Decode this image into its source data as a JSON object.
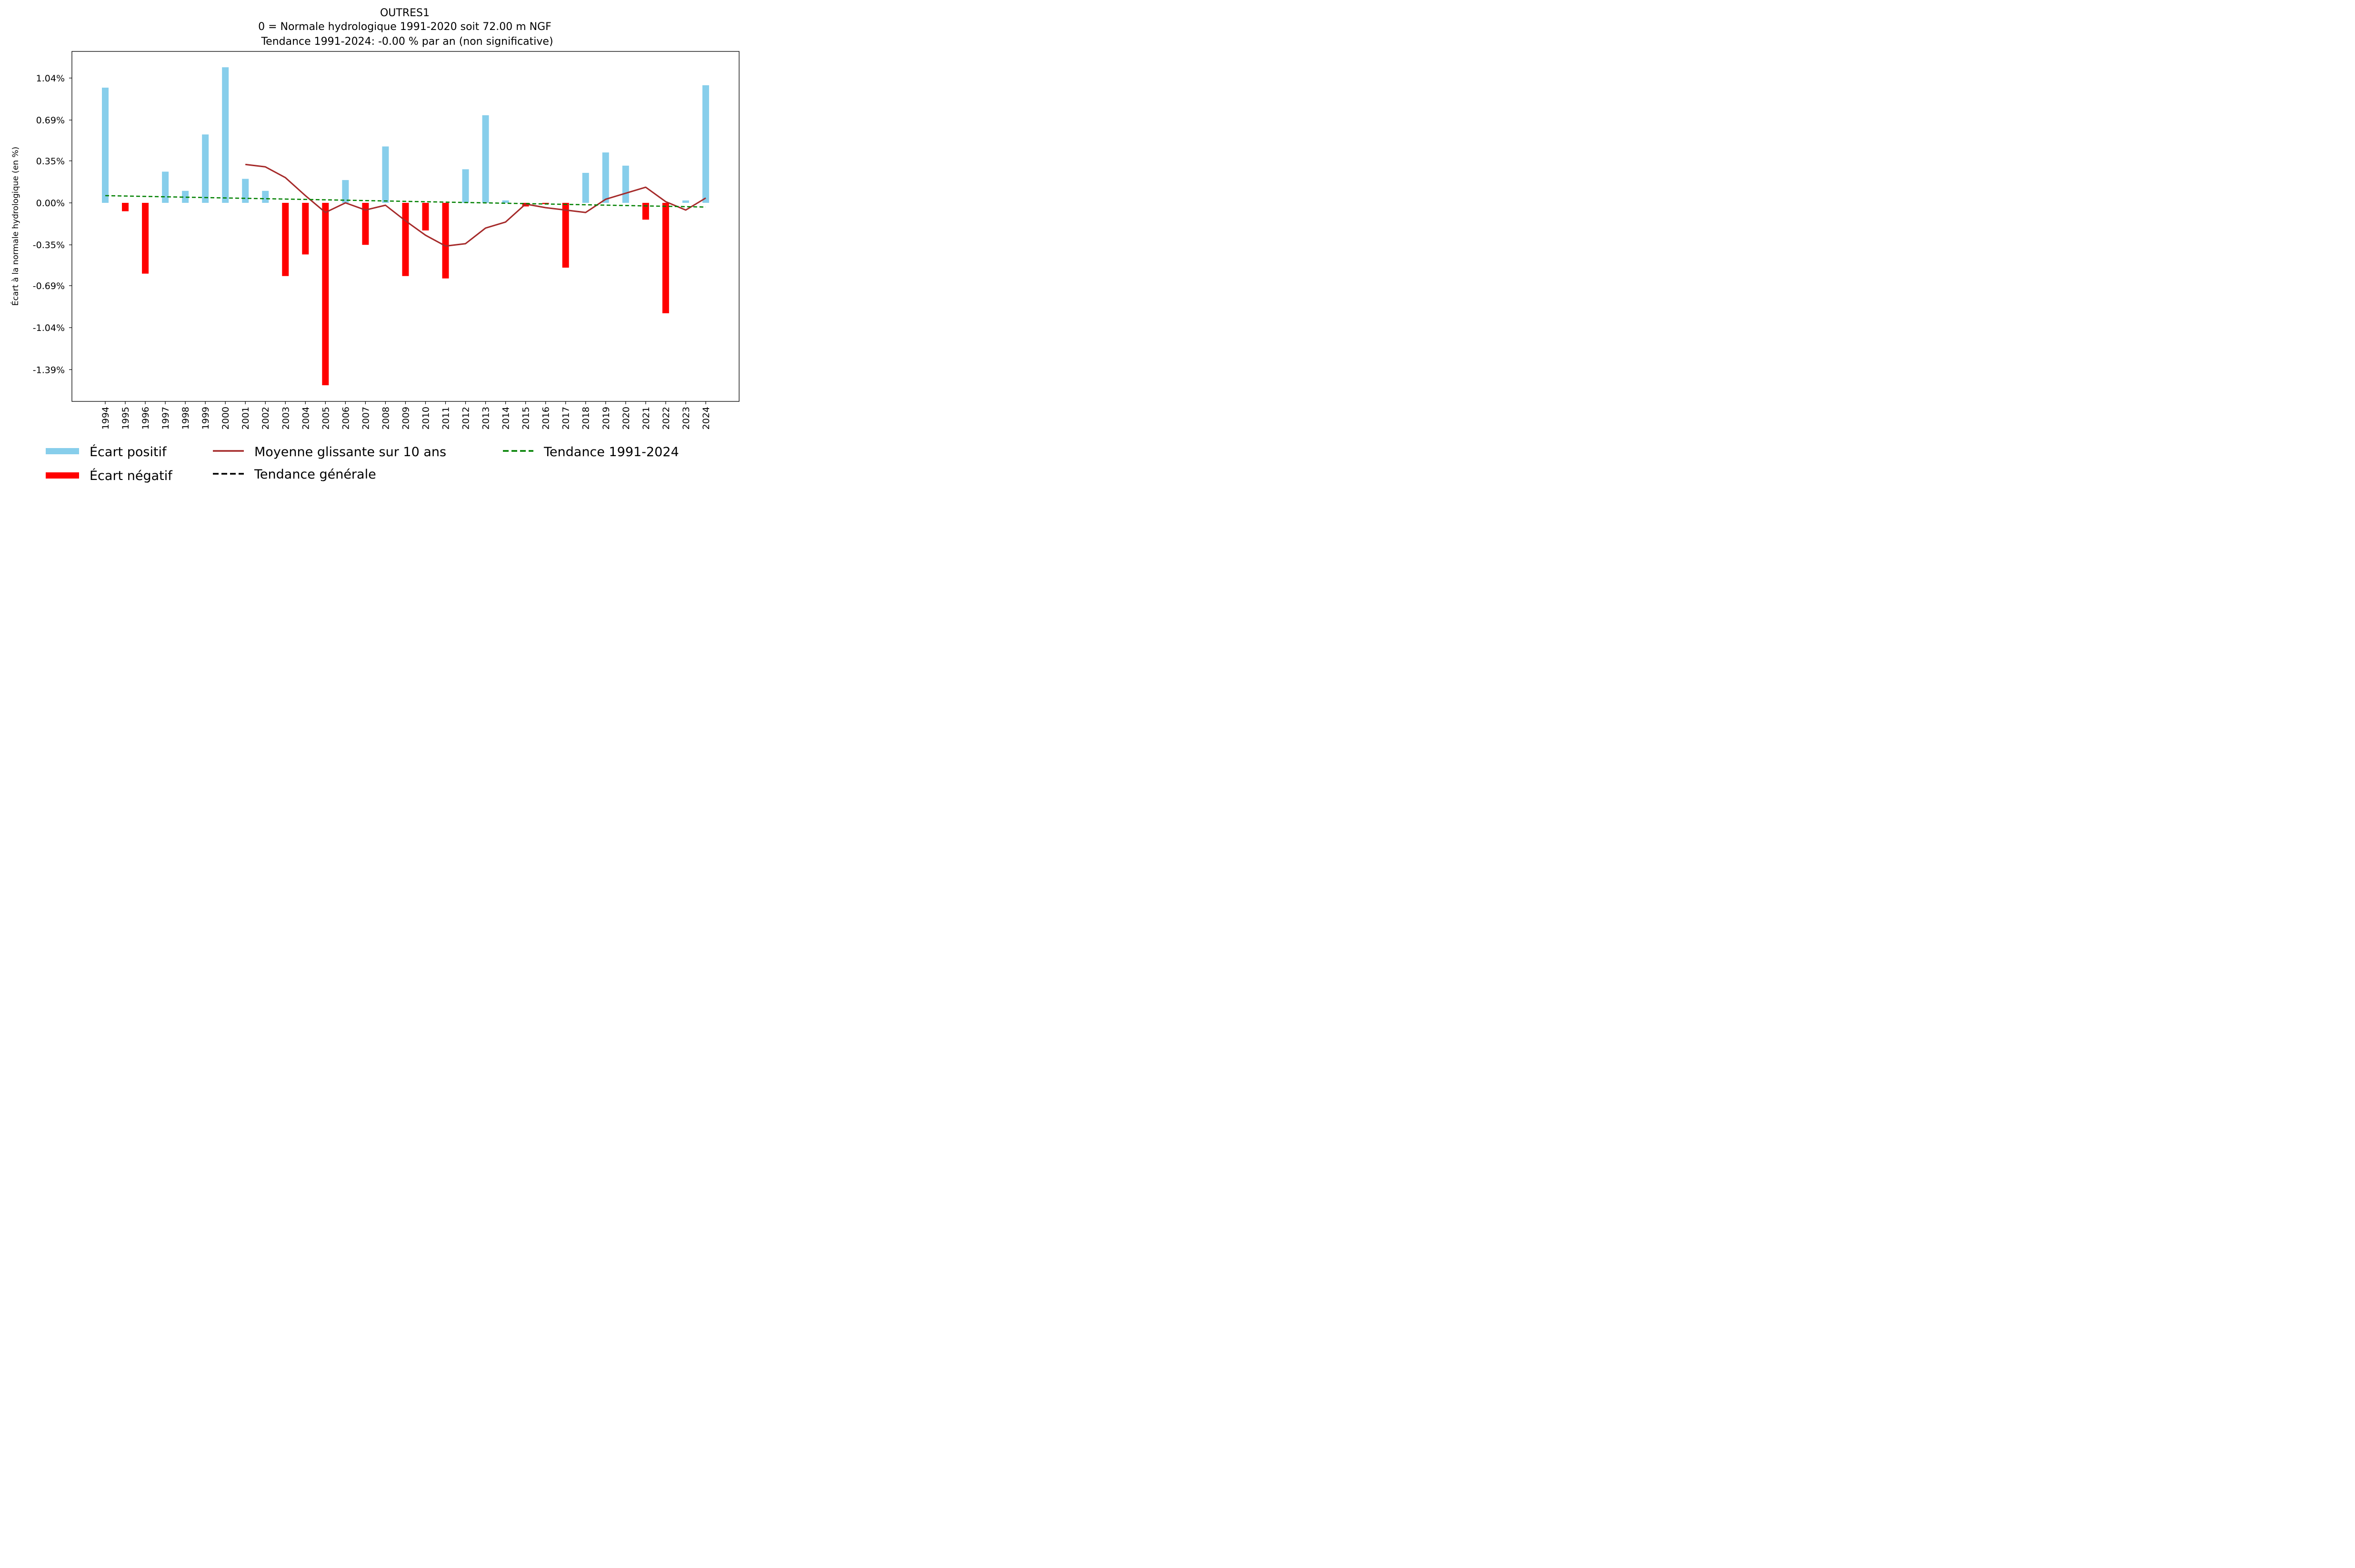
{
  "chart_data": {
    "type": "bar",
    "title": "OUTRES1",
    "subtitle_lines": [
      "0 = Normale hydrologique 1991-2020 soit 72.00 m NGF",
      "Tendance 1991-2024: -0.00 % par an (non significative)"
    ],
    "xlabel": "",
    "ylabel": "Écart à la normale hydrologique (en %)",
    "ylim": [
      -1.65,
      1.26
    ],
    "yticks": [
      1.04,
      0.69,
      0.35,
      0.0,
      -0.35,
      -0.69,
      -1.04,
      -1.39
    ],
    "ytick_labels": [
      "1.04%",
      "0.69%",
      "0.35%",
      "0.00%",
      "-0.35%",
      "-0.69%",
      "-1.04%",
      "-1.39%"
    ],
    "grid": false,
    "categories": [
      "1994",
      "1995",
      "1996",
      "1997",
      "1998",
      "1999",
      "2000",
      "2001",
      "2002",
      "2003",
      "2004",
      "2005",
      "2006",
      "2007",
      "2008",
      "2009",
      "2010",
      "2011",
      "2012",
      "2013",
      "2014",
      "2015",
      "2016",
      "2017",
      "2018",
      "2019",
      "2020",
      "2021",
      "2022",
      "2023",
      "2024"
    ],
    "series": [
      {
        "name": "Écart à la normale",
        "kind": "bar",
        "values": [
          0.96,
          -0.07,
          -0.59,
          0.26,
          0.1,
          0.57,
          1.13,
          0.2,
          0.1,
          -0.61,
          -0.43,
          -1.52,
          0.19,
          -0.35,
          0.47,
          -0.61,
          -0.23,
          -0.63,
          0.28,
          0.73,
          0.02,
          -0.03,
          -0.01,
          -0.54,
          0.25,
          0.42,
          0.31,
          -0.14,
          -0.92,
          0.02,
          0.98
        ],
        "positive_color": "#87ceeb",
        "negative_color": "#ff0000"
      },
      {
        "name": "Moyenne glissante sur 10 ans",
        "kind": "line",
        "x": [
          "2001",
          "2002",
          "2003",
          "2004",
          "2005",
          "2006",
          "2007",
          "2008",
          "2009",
          "2010",
          "2011",
          "2012",
          "2013",
          "2014",
          "2015",
          "2016",
          "2017",
          "2018",
          "2019",
          "2020",
          "2021",
          "2022",
          "2023",
          "2024"
        ],
        "values": [
          0.32,
          0.3,
          0.21,
          0.06,
          -0.08,
          0.0,
          -0.06,
          -0.02,
          -0.15,
          -0.27,
          -0.36,
          -0.34,
          -0.21,
          -0.16,
          -0.01,
          -0.04,
          -0.06,
          -0.08,
          0.03,
          0.08,
          0.13,
          0.01,
          -0.06,
          0.04
        ],
        "color": "#a52a2a"
      },
      {
        "name": "Tendance 1991-2024",
        "kind": "line-dashed",
        "x": [
          "1994",
          "2024"
        ],
        "values": [
          0.06,
          -0.035
        ],
        "color": "#008000"
      }
    ],
    "legend": {
      "placement": "bottom",
      "entries": [
        {
          "label": "Écart positif",
          "color": "#87ceeb",
          "style": "bar"
        },
        {
          "label": "Moyenne glissante sur 10 ans",
          "color": "#a52a2a",
          "style": "solid"
        },
        {
          "label": "Tendance 1991-2024",
          "color": "#008000",
          "style": "dashed"
        },
        {
          "label": "Écart négatif",
          "color": "#ff0000",
          "style": "bar"
        },
        {
          "label": "Tendance générale",
          "color": "#000000",
          "style": "dashed"
        }
      ]
    }
  }
}
